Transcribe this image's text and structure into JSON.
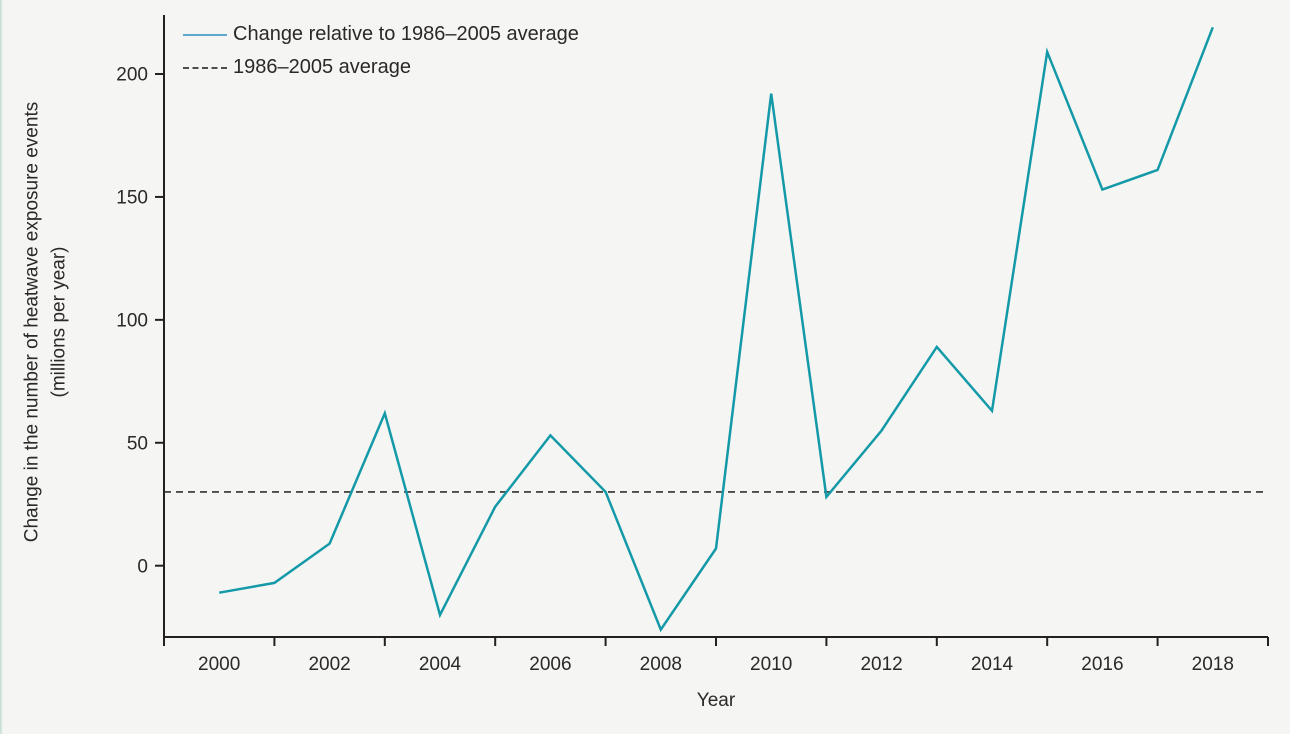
{
  "figure": {
    "y_axis_title_line1": "Change in the number of heatwave exposure events",
    "y_axis_title_line2": "(millions per year)",
    "x_axis_title": "Year",
    "legend": [
      {
        "label": "Change relative to 1986–2005 average",
        "style": "solid",
        "swatch_color": "#5fa8cc"
      },
      {
        "label": "1986–2005 average",
        "style": "dashed",
        "swatch_color": "#4d4d4d"
      }
    ]
  },
  "chart_data": {
    "type": "line",
    "title": "",
    "xlabel": "Year",
    "ylabel": "Change in the number of heatwave exposure events (millions per year)",
    "x": [
      2000,
      2001,
      2002,
      2003,
      2004,
      2005,
      2006,
      2007,
      2008,
      2009,
      2010,
      2011,
      2012,
      2013,
      2014,
      2015,
      2016,
      2017,
      2018
    ],
    "series": [
      {
        "name": "Change relative to 1986–2005 average",
        "color": "#1499a8",
        "values": [
          -11,
          -7,
          9,
          62,
          -20,
          24,
          53,
          30,
          -26,
          7,
          192,
          28,
          55,
          89,
          63,
          209,
          153,
          161,
          219
        ]
      }
    ],
    "reference_line": {
      "name": "1986–2005 average",
      "value": 30,
      "color": "#4a4a4a",
      "style": "dashed"
    },
    "xlim": [
      1999,
      2019
    ],
    "ylim": [
      -29,
      224
    ],
    "y_ticks": [
      0,
      50,
      100,
      150,
      200
    ],
    "x_tick_labels": [
      2000,
      2002,
      2004,
      2006,
      2008,
      2010,
      2012,
      2014,
      2016,
      2018
    ],
    "x_minor_ticks": [
      1999,
      2001,
      2003,
      2005,
      2007,
      2009,
      2011,
      2013,
      2015,
      2017,
      2019
    ],
    "grid": false,
    "legend_position": "top-left",
    "axis_color": "#242021",
    "tick_label_size": 19
  }
}
